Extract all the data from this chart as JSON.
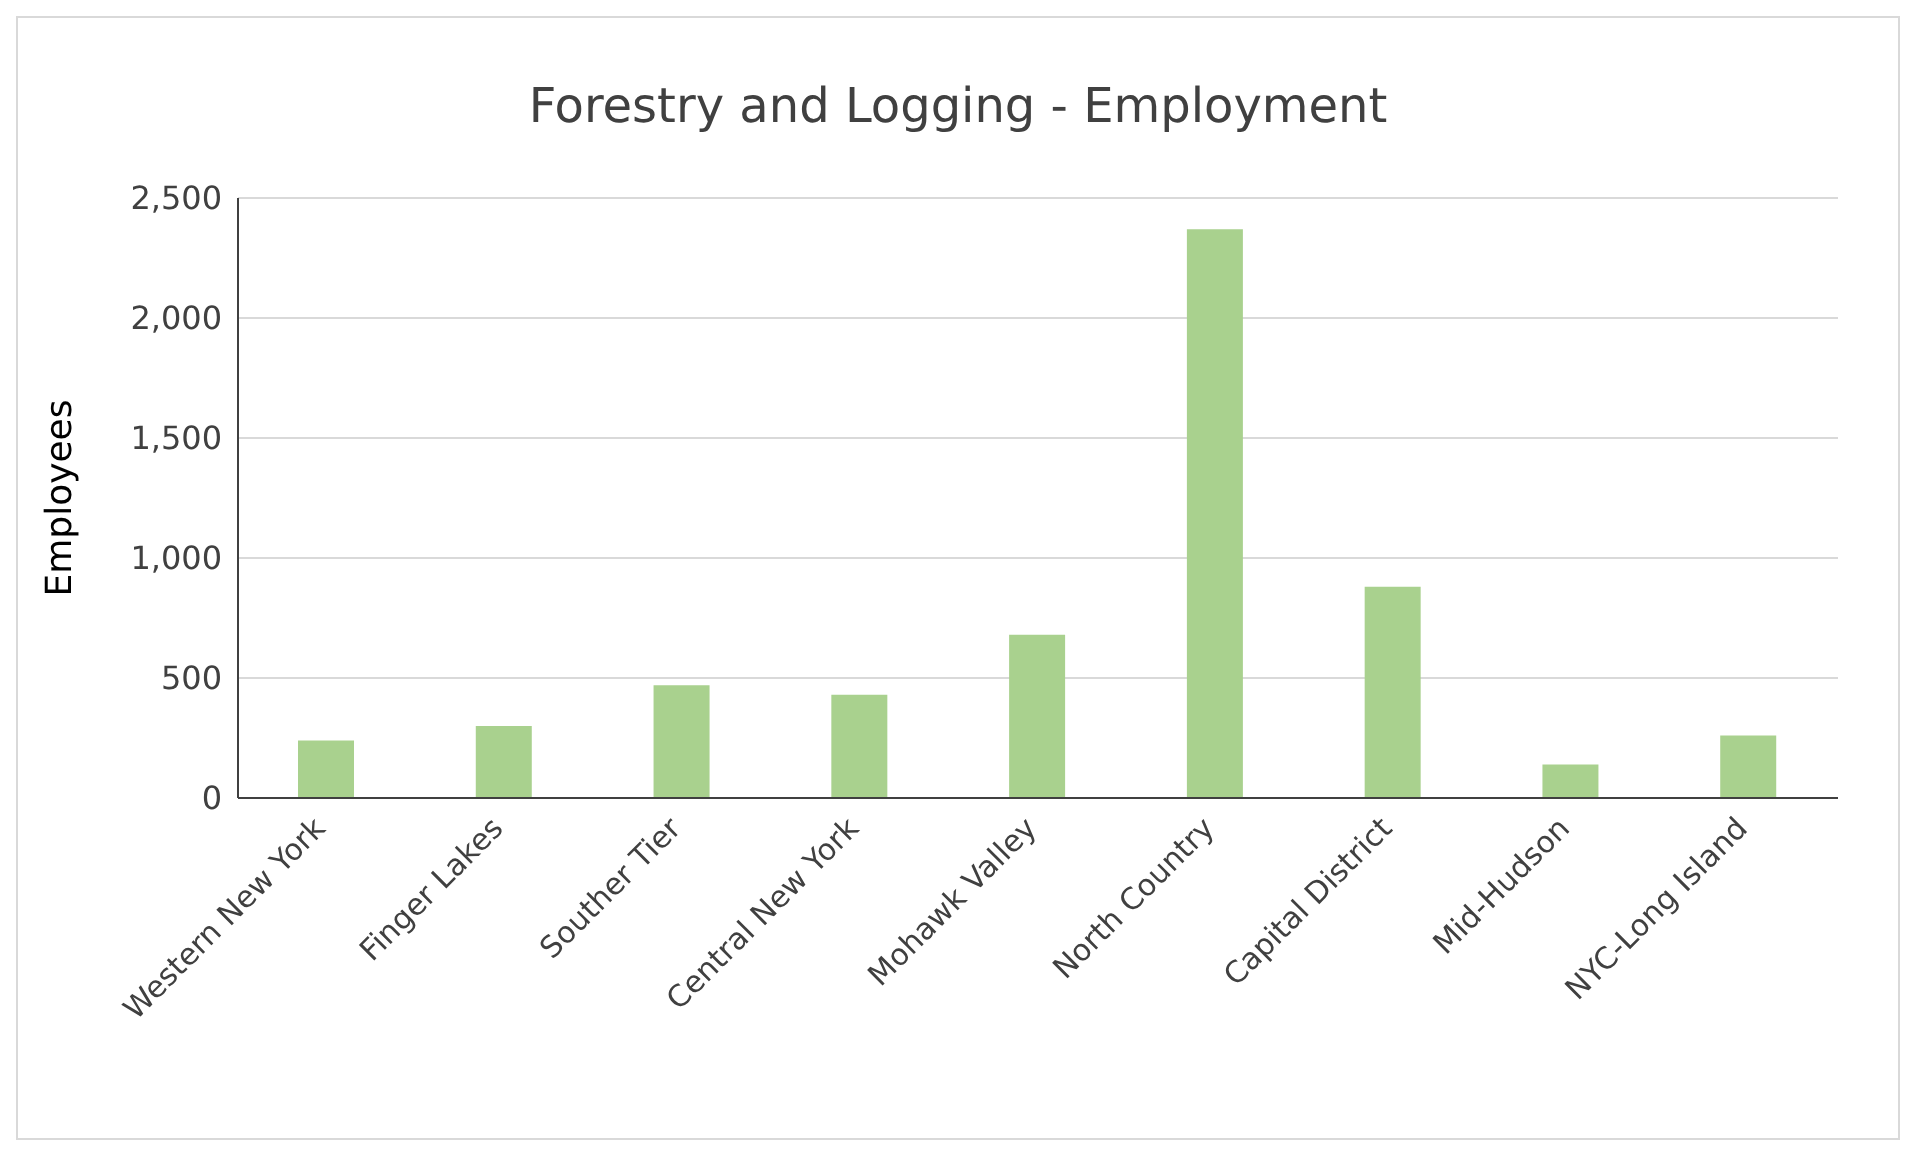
{
  "chart_data": {
    "type": "bar",
    "title": "Forestry and Logging - Employment",
    "ylabel": "Employees",
    "categories": [
      "Western New York",
      "Finger Lakes",
      "Souther Tier",
      "Central New York",
      "Mohawk Valley",
      "North Country",
      "Capital District",
      "Mid-Hudson",
      "NYC-Long Island"
    ],
    "values": [
      240,
      300,
      470,
      430,
      680,
      2370,
      880,
      140,
      260
    ],
    "color": "#a9d18e",
    "ylim": [
      0,
      2500
    ],
    "yticks": [
      {
        "value": 0,
        "label": "0"
      },
      {
        "value": 500,
        "label": "500"
      },
      {
        "value": 1000,
        "label": "1,000"
      },
      {
        "value": 1500,
        "label": "1,500"
      },
      {
        "value": 2000,
        "label": "2,000"
      },
      {
        "value": 2500,
        "label": "2,500"
      }
    ],
    "grid": "y"
  }
}
